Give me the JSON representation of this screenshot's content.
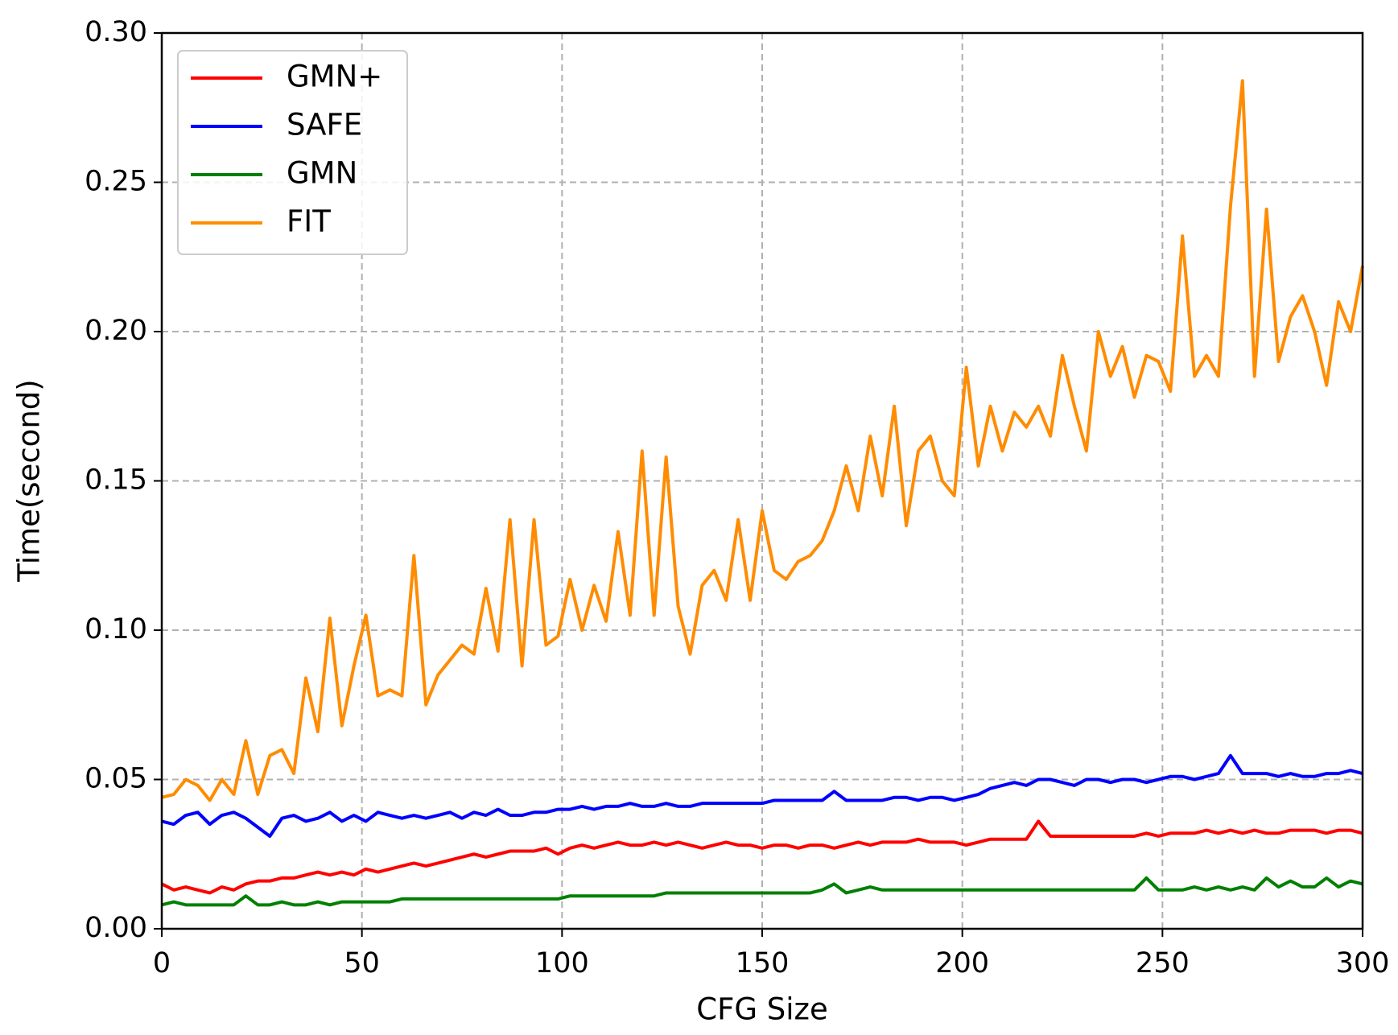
{
  "chart_data": {
    "type": "line",
    "x_label": "CFG Size",
    "y_label": "Time(second)",
    "x": [
      0,
      3,
      6,
      9,
      12,
      15,
      18,
      21,
      24,
      27,
      30,
      33,
      36,
      39,
      42,
      45,
      48,
      51,
      54,
      57,
      60,
      63,
      66,
      69,
      72,
      75,
      78,
      81,
      84,
      87,
      90,
      93,
      96,
      99,
      102,
      105,
      108,
      111,
      114,
      117,
      120,
      123,
      126,
      129,
      132,
      135,
      138,
      141,
      144,
      147,
      150,
      153,
      156,
      159,
      162,
      165,
      168,
      171,
      174,
      177,
      180,
      183,
      186,
      189,
      192,
      195,
      198,
      201,
      204,
      207,
      210,
      213,
      216,
      219,
      222,
      225,
      228,
      231,
      234,
      237,
      240,
      243,
      246,
      249,
      252,
      255,
      258,
      261,
      264,
      267,
      270,
      273,
      276,
      279,
      282,
      285,
      288,
      291,
      294,
      297,
      300
    ],
    "series": [
      {
        "name": "GMN+",
        "color": "#ff0000",
        "values": [
          0.015,
          0.013,
          0.014,
          0.013,
          0.012,
          0.014,
          0.013,
          0.015,
          0.016,
          0.016,
          0.017,
          0.017,
          0.018,
          0.019,
          0.018,
          0.019,
          0.018,
          0.02,
          0.019,
          0.02,
          0.021,
          0.022,
          0.021,
          0.022,
          0.023,
          0.024,
          0.025,
          0.024,
          0.025,
          0.026,
          0.026,
          0.026,
          0.027,
          0.025,
          0.027,
          0.028,
          0.027,
          0.028,
          0.029,
          0.028,
          0.028,
          0.029,
          0.028,
          0.029,
          0.028,
          0.027,
          0.028,
          0.029,
          0.028,
          0.028,
          0.027,
          0.028,
          0.028,
          0.027,
          0.028,
          0.028,
          0.027,
          0.028,
          0.029,
          0.028,
          0.029,
          0.029,
          0.029,
          0.03,
          0.029,
          0.029,
          0.029,
          0.028,
          0.029,
          0.03,
          0.03,
          0.03,
          0.03,
          0.036,
          0.031,
          0.031,
          0.031,
          0.031,
          0.031,
          0.031,
          0.031,
          0.031,
          0.032,
          0.031,
          0.032,
          0.032,
          0.032,
          0.033,
          0.032,
          0.033,
          0.032,
          0.033,
          0.032,
          0.032,
          0.033,
          0.033,
          0.033,
          0.032,
          0.033,
          0.033,
          0.032
        ]
      },
      {
        "name": "SAFE",
        "color": "#0000ff",
        "values": [
          0.036,
          0.035,
          0.038,
          0.039,
          0.035,
          0.038,
          0.039,
          0.037,
          0.034,
          0.031,
          0.037,
          0.038,
          0.036,
          0.037,
          0.039,
          0.036,
          0.038,
          0.036,
          0.039,
          0.038,
          0.037,
          0.038,
          0.037,
          0.038,
          0.039,
          0.037,
          0.039,
          0.038,
          0.04,
          0.038,
          0.038,
          0.039,
          0.039,
          0.04,
          0.04,
          0.041,
          0.04,
          0.041,
          0.041,
          0.042,
          0.041,
          0.041,
          0.042,
          0.041,
          0.041,
          0.042,
          0.042,
          0.042,
          0.042,
          0.042,
          0.042,
          0.043,
          0.043,
          0.043,
          0.043,
          0.043,
          0.046,
          0.043,
          0.043,
          0.043,
          0.043,
          0.044,
          0.044,
          0.043,
          0.044,
          0.044,
          0.043,
          0.044,
          0.045,
          0.047,
          0.048,
          0.049,
          0.048,
          0.05,
          0.05,
          0.049,
          0.048,
          0.05,
          0.05,
          0.049,
          0.05,
          0.05,
          0.049,
          0.05,
          0.051,
          0.051,
          0.05,
          0.051,
          0.052,
          0.058,
          0.052,
          0.052,
          0.052,
          0.051,
          0.052,
          0.051,
          0.051,
          0.052,
          0.052,
          0.053,
          0.052
        ]
      },
      {
        "name": "GMN",
        "color": "#008000",
        "values": [
          0.008,
          0.009,
          0.008,
          0.008,
          0.008,
          0.008,
          0.008,
          0.011,
          0.008,
          0.008,
          0.009,
          0.008,
          0.008,
          0.009,
          0.008,
          0.009,
          0.009,
          0.009,
          0.009,
          0.009,
          0.01,
          0.01,
          0.01,
          0.01,
          0.01,
          0.01,
          0.01,
          0.01,
          0.01,
          0.01,
          0.01,
          0.01,
          0.01,
          0.01,
          0.011,
          0.011,
          0.011,
          0.011,
          0.011,
          0.011,
          0.011,
          0.011,
          0.012,
          0.012,
          0.012,
          0.012,
          0.012,
          0.012,
          0.012,
          0.012,
          0.012,
          0.012,
          0.012,
          0.012,
          0.012,
          0.013,
          0.015,
          0.012,
          0.013,
          0.014,
          0.013,
          0.013,
          0.013,
          0.013,
          0.013,
          0.013,
          0.013,
          0.013,
          0.013,
          0.013,
          0.013,
          0.013,
          0.013,
          0.013,
          0.013,
          0.013,
          0.013,
          0.013,
          0.013,
          0.013,
          0.013,
          0.013,
          0.017,
          0.013,
          0.013,
          0.013,
          0.014,
          0.013,
          0.014,
          0.013,
          0.014,
          0.013,
          0.017,
          0.014,
          0.016,
          0.014,
          0.014,
          0.017,
          0.014,
          0.016,
          0.015
        ]
      },
      {
        "name": "FIT",
        "color": "#ff8c00",
        "values": [
          0.044,
          0.045,
          0.05,
          0.048,
          0.043,
          0.05,
          0.045,
          0.063,
          0.045,
          0.058,
          0.06,
          0.052,
          0.084,
          0.066,
          0.104,
          0.068,
          0.088,
          0.105,
          0.078,
          0.08,
          0.078,
          0.125,
          0.075,
          0.085,
          0.09,
          0.095,
          0.092,
          0.114,
          0.093,
          0.137,
          0.088,
          0.137,
          0.095,
          0.098,
          0.117,
          0.1,
          0.115,
          0.103,
          0.133,
          0.105,
          0.16,
          0.105,
          0.158,
          0.108,
          0.092,
          0.115,
          0.12,
          0.11,
          0.137,
          0.11,
          0.14,
          0.12,
          0.117,
          0.123,
          0.125,
          0.13,
          0.14,
          0.155,
          0.14,
          0.165,
          0.145,
          0.175,
          0.135,
          0.16,
          0.165,
          0.15,
          0.145,
          0.188,
          0.155,
          0.175,
          0.16,
          0.173,
          0.168,
          0.175,
          0.165,
          0.192,
          0.175,
          0.16,
          0.2,
          0.185,
          0.195,
          0.178,
          0.192,
          0.19,
          0.18,
          0.232,
          0.185,
          0.192,
          0.185,
          0.242,
          0.284,
          0.185,
          0.241,
          0.19,
          0.205,
          0.212,
          0.2,
          0.182,
          0.21,
          0.2,
          0.222
        ]
      }
    ],
    "xlim": [
      0,
      300
    ],
    "ylim": [
      0,
      0.3
    ],
    "xticks": [
      0,
      50,
      100,
      150,
      200,
      250,
      300
    ],
    "yticks": [
      {
        "value": 0,
        "label": "0.00"
      },
      {
        "value": 0.05,
        "label": "0.05"
      },
      {
        "value": 0.1,
        "label": "0.10"
      },
      {
        "value": 0.15,
        "label": "0.15"
      },
      {
        "value": 0.2,
        "label": "0.20"
      },
      {
        "value": 0.25,
        "label": "0.25"
      },
      {
        "value": 0.3,
        "label": "0.30"
      }
    ],
    "grid": true,
    "legend": "upper left"
  }
}
